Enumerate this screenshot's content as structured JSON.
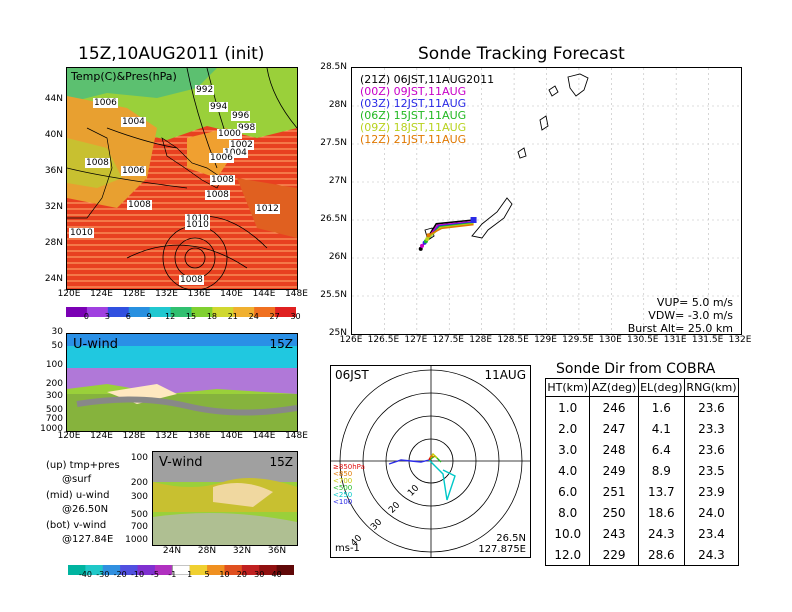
{
  "left": {
    "title": "15Z,10AUG2011 (init)",
    "map_label": "Temp(C)&Pres(hPa)",
    "map_lat_ticks": [
      "44N",
      "40N",
      "36N",
      "32N",
      "28N",
      "24N"
    ],
    "map_lon_ticks": [
      "120E",
      "124E",
      "128E",
      "132E",
      "136E",
      "140E",
      "144E",
      "148E"
    ],
    "isobar_labels": [
      "992",
      "994",
      "996",
      "998",
      "1000",
      "1002",
      "1004",
      "1004",
      "1006",
      "1006",
      "1006",
      "1008",
      "1008",
      "1008",
      "1008",
      "1010",
      "1010",
      "1012",
      "1010",
      "1008"
    ],
    "temp_colorbar": [
      "0",
      "3",
      "6",
      "9",
      "12",
      "15",
      "18",
      "21",
      "24",
      "27",
      "30"
    ],
    "uwind_label": "U-wind",
    "uwind_time": "15Z",
    "pressure_ticks": [
      "30",
      "50",
      "100",
      "200",
      "300",
      "500",
      "700",
      "1000"
    ],
    "vwind_label": "V-wind",
    "vwind_time": "15Z",
    "vwind_lat_ticks": [
      "24N",
      "28N",
      "32N",
      "36N"
    ],
    "notes": [
      "(up) tmp+pres",
      "@surf",
      "(mid) u-wind",
      "@26.50N",
      "(bot) v-wind",
      "@127.84E"
    ],
    "wind_colorbar": [
      "-40",
      "-30",
      "-20",
      "-10",
      "-5",
      "-1",
      "1",
      "5",
      "10",
      "20",
      "30",
      "40"
    ]
  },
  "track": {
    "title": "Sonde Tracking Forecast",
    "lat_ticks": [
      "28.5N",
      "28N",
      "27.5N",
      "27N",
      "26.5N",
      "26N",
      "25.5N",
      "25N"
    ],
    "lon_ticks": [
      "126E",
      "126.5E",
      "127E",
      "127.5E",
      "128E",
      "128.5E",
      "129E",
      "129.5E",
      "130E",
      "130.5E",
      "131E",
      "131.5E",
      "132E"
    ],
    "legend": [
      {
        "text": "(21Z)  06JST,11AUG2011",
        "color": "#000000"
      },
      {
        "text": "(00Z)  09JST,11AUG",
        "color": "#c800c8"
      },
      {
        "text": "(03Z)  12JST,11AUG",
        "color": "#2a2ae6"
      },
      {
        "text": "(06Z)  15JST,11AUG",
        "color": "#22b822"
      },
      {
        "text": "(09Z)  18JST,11AUG",
        "color": "#b8d21e"
      },
      {
        "text": "(12Z)  21JST,11AUG",
        "color": "#e07800"
      }
    ],
    "vup": "VUP=  5.0  m/s",
    "vdw": "VDW=  -3.0  m/s",
    "burst": "Burst Alt=  25.0  km"
  },
  "polar": {
    "time_left": "06JST",
    "date_right": "11AUG",
    "ring_labels": [
      "10",
      "20",
      "30",
      "40"
    ],
    "level_legend": [
      {
        "text": "≥850hPa",
        "color": "#e01010"
      },
      {
        "text": "<850",
        "color": "#e07800"
      },
      {
        "text": "<700",
        "color": "#c8c800"
      },
      {
        "text": "<500",
        "color": "#22b822"
      },
      {
        "text": "<250",
        "color": "#00c8c8"
      },
      {
        "text": "<100",
        "color": "#2a2ae6"
      }
    ],
    "unit": "ms-1",
    "lat": "26.5N",
    "lon": "127.875E"
  },
  "table": {
    "title": "Sonde Dir from COBRA",
    "headers": [
      "HT(km)",
      "AZ(deg)",
      "EL(deg)",
      "RNG(km)"
    ],
    "rows": [
      [
        "1.0",
        "246",
        "1.6",
        "23.6"
      ],
      [
        "2.0",
        "247",
        "4.1",
        "23.3"
      ],
      [
        "3.0",
        "248",
        "6.4",
        "23.6"
      ],
      [
        "4.0",
        "249",
        "8.9",
        "23.5"
      ],
      [
        "6.0",
        "251",
        "13.7",
        "23.9"
      ],
      [
        "8.0",
        "250",
        "18.6",
        "24.0"
      ],
      [
        "10.0",
        "243",
        "24.3",
        "23.4"
      ],
      [
        "12.0",
        "229",
        "28.6",
        "24.3"
      ]
    ]
  },
  "chart_data": [
    {
      "type": "heatmap",
      "title": "15Z,10AUG2011 (init)",
      "label": "Temp(C)&Pres(hPa)",
      "x_ticks": [
        "120E",
        "124E",
        "128E",
        "132E",
        "136E",
        "140E",
        "144E",
        "148E"
      ],
      "y_ticks": [
        "44N",
        "40N",
        "36N",
        "32N",
        "28N",
        "24N"
      ],
      "colorbar": [
        0,
        3,
        6,
        9,
        12,
        15,
        18,
        21,
        24,
        27,
        30
      ],
      "contour_labels": [
        992,
        994,
        996,
        998,
        1000,
        1002,
        1004,
        1006,
        1008,
        1010,
        1012
      ]
    },
    {
      "type": "heatmap",
      "label": "U-wind",
      "time": "15Z",
      "x_ticks": [
        "120E",
        "124E",
        "128E",
        "132E",
        "136E",
        "140E",
        "144E",
        "148E"
      ],
      "y_ticks": [
        30,
        50,
        100,
        200,
        300,
        500,
        700,
        1000
      ],
      "y_scale": "log",
      "colorbar": [
        -40,
        -30,
        -20,
        -10,
        -5,
        -1,
        1,
        5,
        10,
        20,
        30,
        40
      ]
    },
    {
      "type": "heatmap",
      "label": "V-wind",
      "time": "15Z",
      "x_ticks": [
        "24N",
        "28N",
        "32N",
        "36N"
      ],
      "y_ticks": [
        100,
        200,
        300,
        500,
        700,
        1000
      ],
      "y_scale": "log",
      "colorbar": [
        -40,
        -30,
        -20,
        -10,
        -5,
        -1,
        1,
        5,
        10,
        20,
        30,
        40
      ]
    },
    {
      "type": "line",
      "title": "Sonde Tracking Forecast",
      "xlim": [
        126,
        132
      ],
      "ylim": [
        25,
        28.5
      ],
      "grid": true,
      "series": [
        {
          "name": "(21Z) 06JST,11AUG2011",
          "x": [
            127.875,
            127.3,
            127.06
          ],
          "y": [
            26.5,
            26.45,
            26.12
          ]
        },
        {
          "name": "(00Z) 09JST,11AUG",
          "x": [
            127.875,
            127.32,
            127.08
          ],
          "y": [
            26.48,
            26.43,
            26.16
          ]
        },
        {
          "name": "(03Z) 12JST,11AUG",
          "x": [
            127.875,
            127.34,
            127.12
          ],
          "y": [
            26.47,
            26.42,
            26.2
          ]
        },
        {
          "name": "(06Z) 15JST,11AUG",
          "x": [
            127.875,
            127.35,
            127.14
          ],
          "y": [
            26.46,
            26.41,
            26.22
          ]
        },
        {
          "name": "(09Z) 18JST,11AUG",
          "x": [
            127.875,
            127.36,
            127.16
          ],
          "y": [
            26.45,
            26.4,
            26.25
          ]
        },
        {
          "name": "(12Z) 21JST,11AUG",
          "x": [
            127.875,
            127.38,
            127.18
          ],
          "y": [
            26.44,
            26.39,
            26.3
          ]
        }
      ]
    },
    {
      "type": "table",
      "title": "Sonde Dir from COBRA",
      "columns": [
        "HT(km)",
        "AZ(deg)",
        "EL(deg)",
        "RNG(km)"
      ],
      "rows": [
        [
          1.0,
          246,
          1.6,
          23.6
        ],
        [
          2.0,
          247,
          4.1,
          23.3
        ],
        [
          3.0,
          248,
          6.4,
          23.6
        ],
        [
          4.0,
          249,
          8.9,
          23.5
        ],
        [
          6.0,
          251,
          13.7,
          23.9
        ],
        [
          8.0,
          250,
          18.6,
          24.0
        ],
        [
          10.0,
          243,
          24.3,
          23.4
        ],
        [
          12.0,
          229,
          28.6,
          24.3
        ]
      ]
    }
  ]
}
